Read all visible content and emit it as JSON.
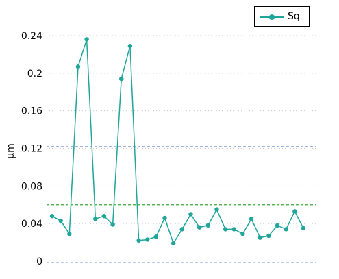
{
  "chart_data": {
    "type": "line",
    "title": "",
    "xlabel": "",
    "ylabel": "µm",
    "ylim": [
      0,
      0.26
    ],
    "y_ticks": [
      0,
      0.04,
      0.08,
      0.12,
      0.16,
      0.2,
      0.24
    ],
    "y_tick_labels": [
      "0",
      "0.04",
      "0.08",
      "0.12",
      "0.16",
      "0.2",
      "0.24"
    ],
    "x": [
      1,
      2,
      3,
      4,
      5,
      6,
      7,
      8,
      9,
      10,
      11,
      12,
      13,
      14,
      15,
      16,
      17,
      18,
      19,
      20,
      21,
      22,
      23,
      24,
      25,
      26,
      27,
      28,
      29,
      30
    ],
    "series": [
      {
        "name": "Sq",
        "color": "#1fa59a",
        "values": [
          0.048,
          0.043,
          0.029,
          0.207,
          0.236,
          0.045,
          0.048,
          0.039,
          0.194,
          0.229,
          0.022,
          0.023,
          0.026,
          0.046,
          0.019,
          0.034,
          0.05,
          0.036,
          0.038,
          0.055,
          0.034,
          0.034,
          0.029,
          0.045,
          0.025,
          0.027,
          0.038,
          0.034,
          0.053,
          0.035
        ]
      }
    ],
    "reference_lines": [
      {
        "value": 0.122,
        "color": "#8faadc",
        "style": "dashed"
      },
      {
        "value": 0.06,
        "color": "#3aaa35",
        "style": "dashed"
      },
      {
        "value": -0.001,
        "color": "#8faadc",
        "style": "dashed"
      }
    ],
    "grid": {
      "horizontal": true,
      "style": "dotted",
      "color": "#c8c8c8"
    },
    "legend": {
      "placement": "top-right"
    }
  }
}
